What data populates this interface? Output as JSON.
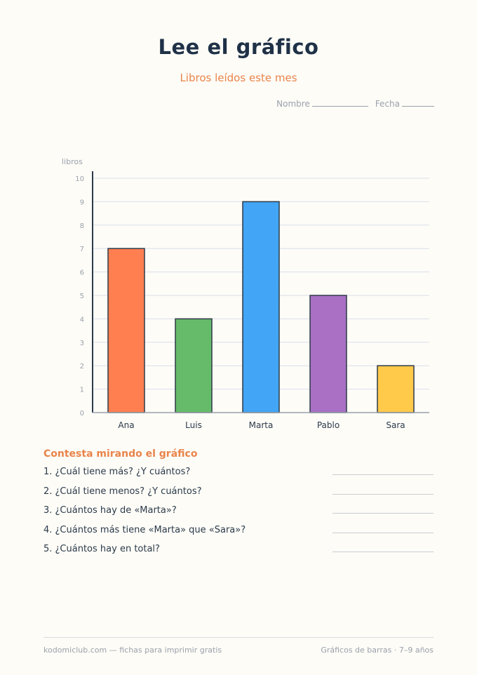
{
  "header": {
    "title": "Lee el gráfico",
    "subtitle": "Libros leídos este mes",
    "name_label": "Nombre",
    "date_label": "Fecha"
  },
  "chart_data": {
    "type": "bar",
    "ylabel": "libros",
    "ylim": [
      0,
      10
    ],
    "yticks": [
      "0",
      "1",
      "2",
      "3",
      "4",
      "5",
      "6",
      "7",
      "8",
      "9",
      "10"
    ],
    "grid": true,
    "categories": [
      "Ana",
      "Luis",
      "Marta",
      "Pablo",
      "Sara"
    ],
    "values": [
      7,
      4,
      9,
      5,
      2
    ],
    "colors": [
      "#ff7f50",
      "#66bb6a",
      "#42a5f5",
      "#a970c4",
      "#ffc94a"
    ]
  },
  "questions": {
    "title": "Contesta mirando el gráfico",
    "items": [
      "1. ¿Cuál tiene más? ¿Y cuántos?",
      "2. ¿Cuál tiene menos? ¿Y cuántos?",
      "3. ¿Cuántos hay de «Marta»?",
      "4. ¿Cuántos más tiene «Marta» que «Sara»?",
      "5. ¿Cuántos hay en total?"
    ]
  },
  "footer": {
    "left": "kodomiclub.com — fichas para imprimir gratis",
    "right": "Gráficos de barras · 7–9 años"
  }
}
